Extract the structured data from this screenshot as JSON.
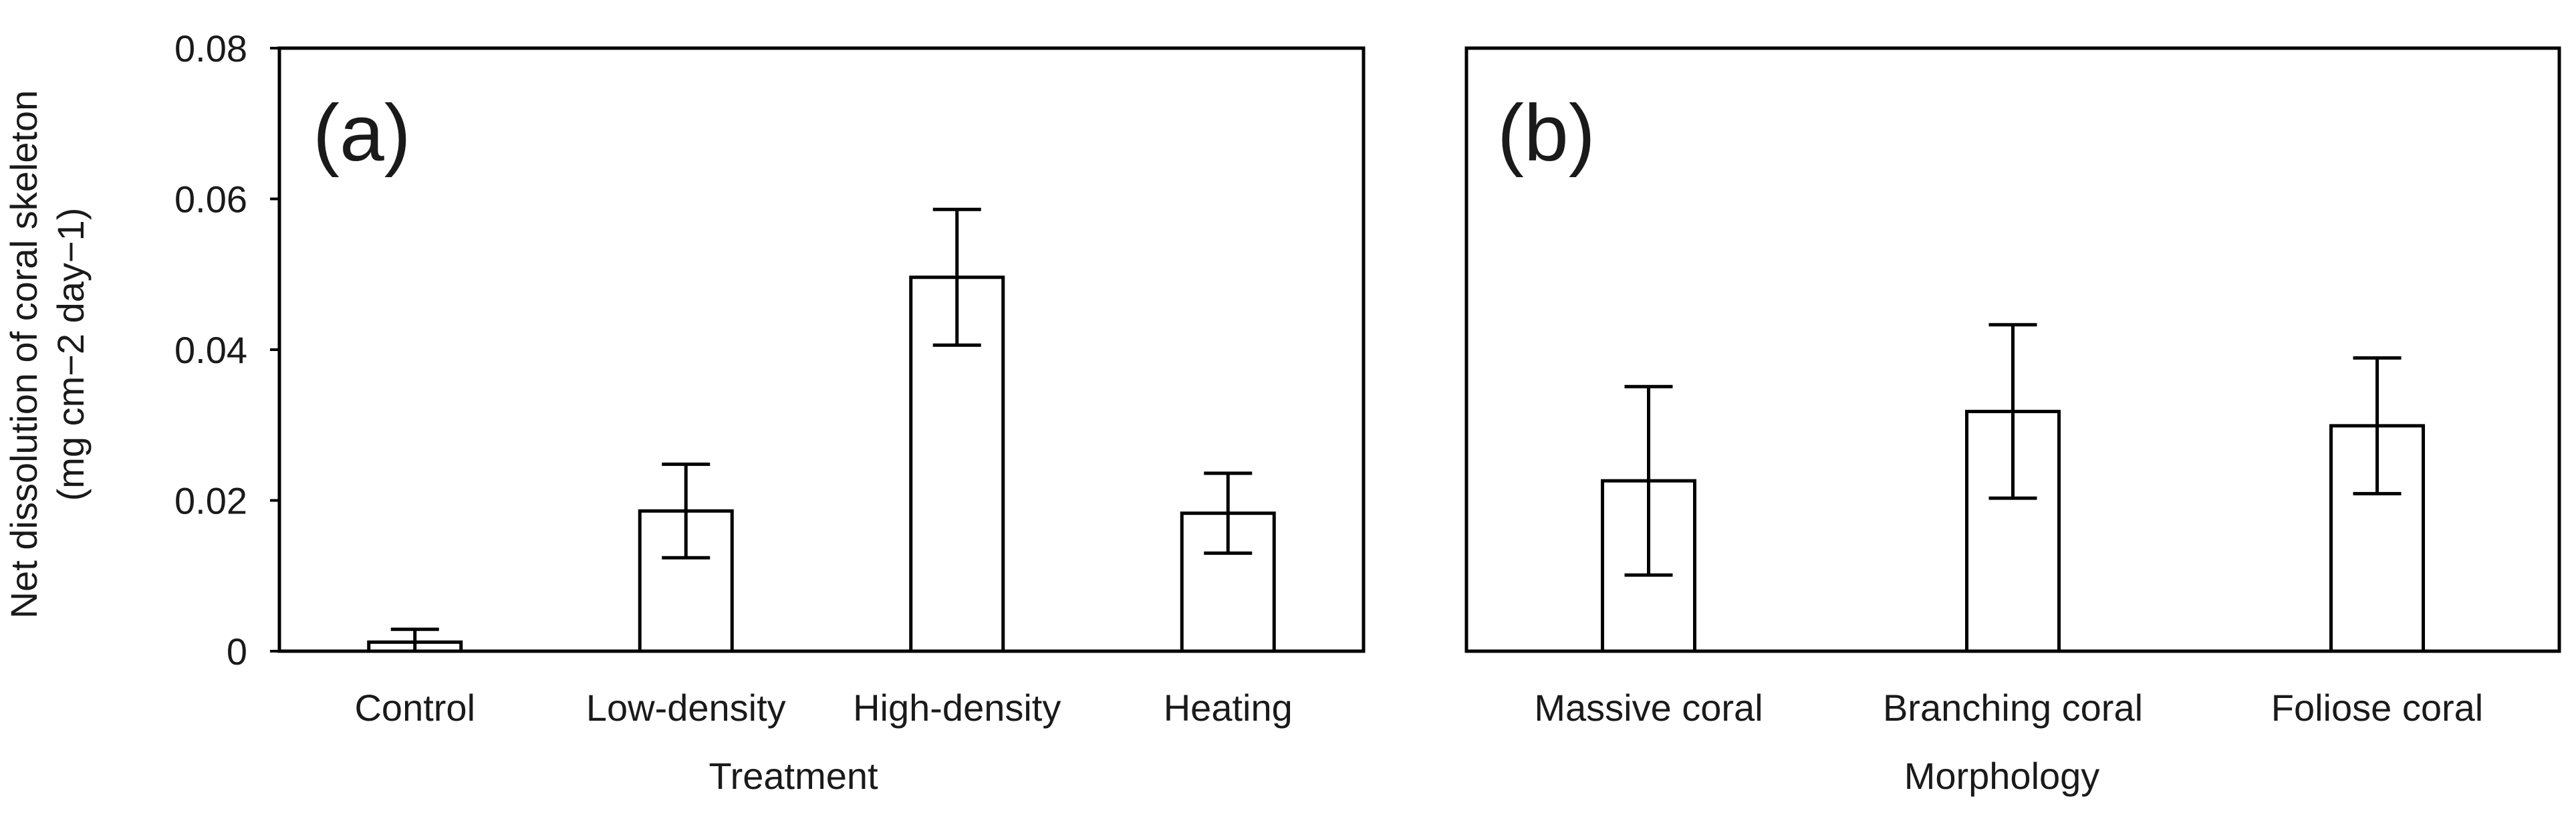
{
  "chart_data": [
    {
      "type": "bar",
      "panel_label": "(a)",
      "title": "",
      "xlabel": "Treatment",
      "ylabel": "Net dissolution of coral skeleton",
      "ylabel_unit": "(mg cm−2 day−1)",
      "yticks": [
        "0",
        "0.02",
        "0.04",
        "0.06",
        "0.08"
      ],
      "ylim": [
        0,
        0.08
      ],
      "grid": false,
      "categories": [
        "Control",
        "Low-density",
        "High-density",
        "Heating"
      ],
      "values": [
        0.0012,
        0.0186,
        0.0496,
        0.0183
      ],
      "errors": [
        0.0017,
        0.0062,
        0.009,
        0.0053
      ]
    },
    {
      "type": "bar",
      "panel_label": "(b)",
      "title": "",
      "xlabel": "Morphology",
      "ylabel": "",
      "ylim": [
        0,
        0.08
      ],
      "grid": false,
      "categories": [
        "Massive coral",
        "Branching coral",
        "Foliose coral"
      ],
      "values": [
        0.0226,
        0.0318,
        0.0299
      ],
      "errors": [
        0.0125,
        0.0115,
        0.009
      ]
    }
  ]
}
